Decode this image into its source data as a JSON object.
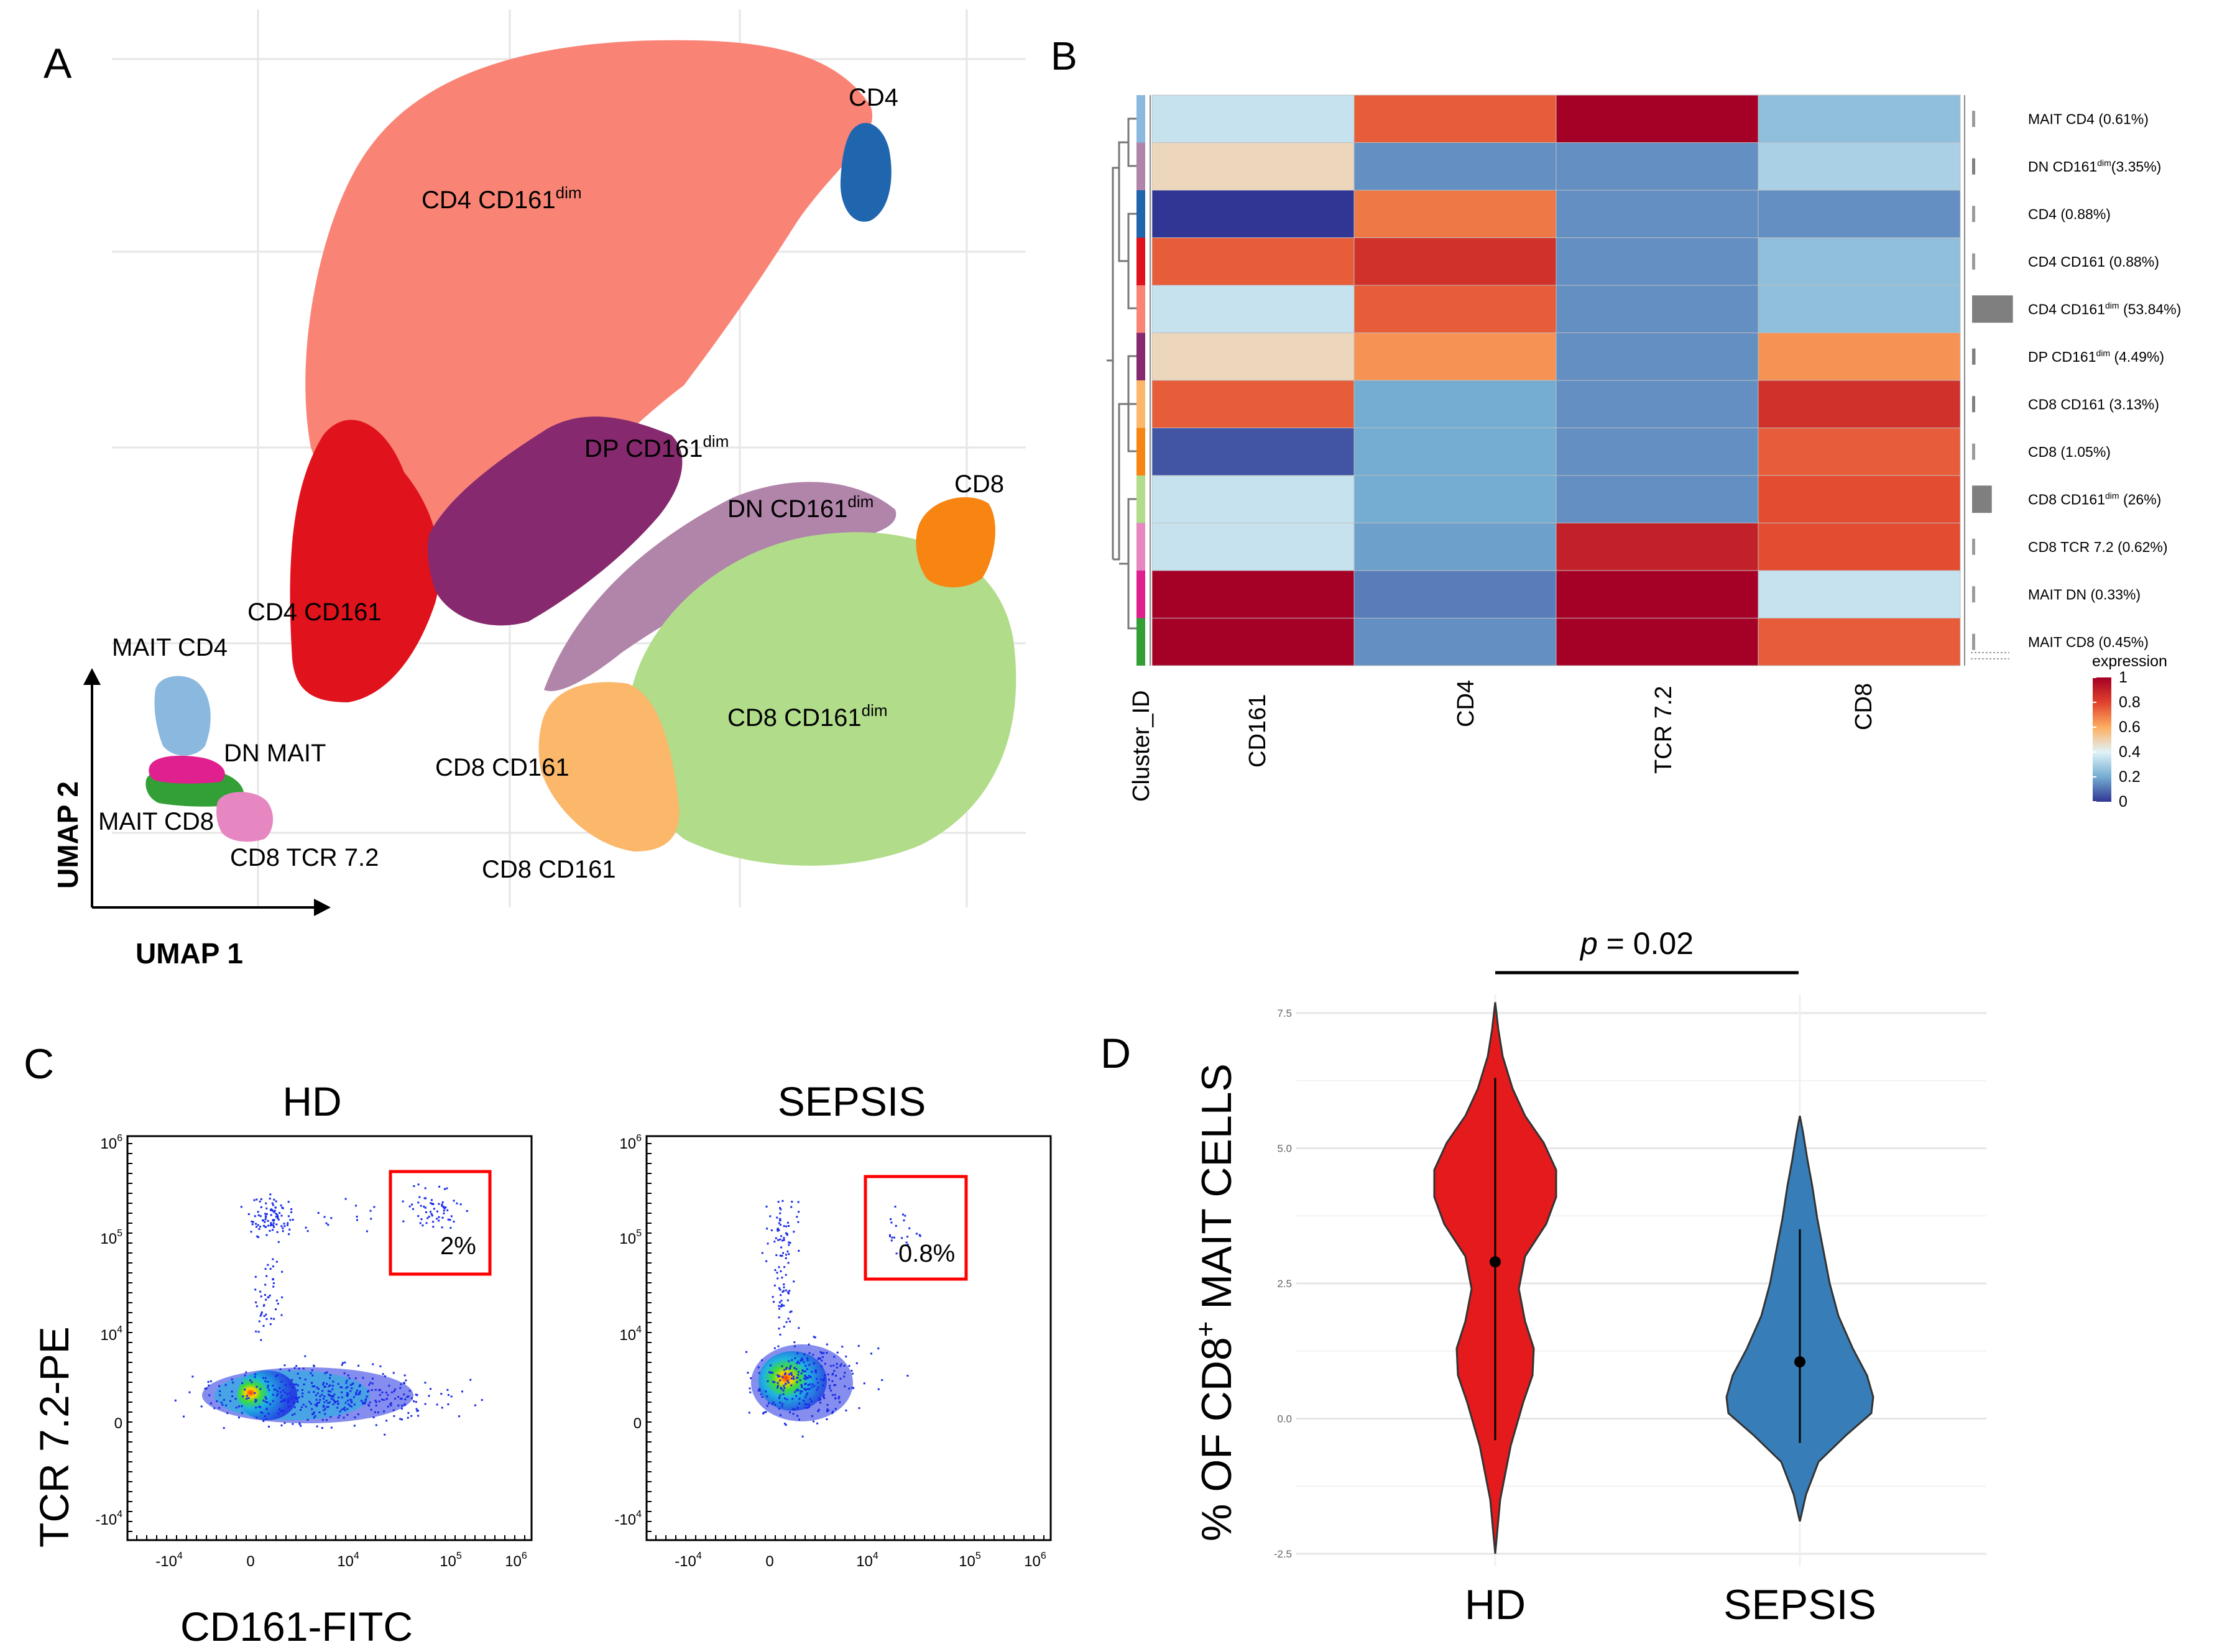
{
  "panels": {
    "A": "A",
    "B": "B",
    "C": "C",
    "D": "D"
  },
  "colors": {
    "cd4_dim": "#F98475",
    "cd4": "#1F66AE",
    "cd4_cd161": "#E0121B",
    "dp_dim": "#86296E",
    "dn_dim": "#B184AA",
    "cd8": "#F88412",
    "cd8_dim": "#B1DC8A",
    "cd8_cd161": "#FBB76A",
    "mait_cd4": "#8AB8DE",
    "mait_cd8": "#32A036",
    "dn_mait": "#E0208E",
    "cd8_tcr": "#E687C1",
    "hd_violin": "#E41A1C",
    "sepsis_violin": "#377EB8",
    "gate": "#FF0000"
  },
  "chart_data": [
    {
      "panel": "A",
      "type": "scatter",
      "title": "",
      "xlabel": "UMAP 1",
      "ylabel": "UMAP 2",
      "clusters": [
        {
          "name": "CD4",
          "label": "CD4",
          "sup": ""
        },
        {
          "name": "CD4 CD161dim",
          "label": "CD4 CD161",
          "sup": "dim"
        },
        {
          "name": "DP CD161dim",
          "label": "DP CD161",
          "sup": "dim"
        },
        {
          "name": "CD8",
          "label": "CD8",
          "sup": ""
        },
        {
          "name": "DN CD161dim",
          "label": "DN CD161",
          "sup": "dim"
        },
        {
          "name": "CD4 CD161",
          "label": "CD4 CD161",
          "sup": ""
        },
        {
          "name": "MAIT CD4",
          "label": "MAIT CD4",
          "sup": ""
        },
        {
          "name": "DN MAIT",
          "label": "DN MAIT",
          "sup": ""
        },
        {
          "name": "CD8 CD161dim",
          "label": "CD8 CD161",
          "sup": "dim"
        },
        {
          "name": "CD8 CD161 (upper)",
          "label": "CD8 CD161",
          "sup": ""
        },
        {
          "name": "MAIT CD8",
          "label": "MAIT CD8",
          "sup": ""
        },
        {
          "name": "CD8 TCR 7.2",
          "label": "CD8 TCR 7.2",
          "sup": ""
        },
        {
          "name": "CD8 CD161 (lower)",
          "label": "CD8 CD161",
          "sup": ""
        }
      ]
    },
    {
      "panel": "B",
      "type": "heatmap",
      "columns": [
        "CD161",
        "CD4",
        "TCR 7.2",
        "CD8"
      ],
      "cluster_axis_label": "Cluster_ID",
      "rows": [
        {
          "label": "MAIT CD4 (0.61%)",
          "values": [
            0.35,
            0.75,
            1.0,
            0.25
          ]
        },
        {
          "label": "DN CD161dim(3.35%)",
          "values": [
            0.48,
            0.15,
            0.15,
            0.3
          ]
        },
        {
          "label": "CD4 (0.88%)",
          "values": [
            0.0,
            0.7,
            0.15,
            0.15
          ]
        },
        {
          "label": "CD4 CD161 (0.88%)",
          "values": [
            0.75,
            0.85,
            0.15,
            0.25
          ]
        },
        {
          "label": "CD4 CD161dim (53.84%)",
          "values": [
            0.35,
            0.75,
            0.15,
            0.25
          ]
        },
        {
          "label": "DP CD161dim (4.49%)",
          "values": [
            0.48,
            0.65,
            0.15,
            0.65
          ]
        },
        {
          "label": "CD8 CD161 (3.13%)",
          "values": [
            0.75,
            0.2,
            0.15,
            0.85
          ]
        },
        {
          "label": "CD8  (1.05%)",
          "values": [
            0.05,
            0.2,
            0.15,
            0.75
          ]
        },
        {
          "label": "CD8 CD161dim  (26%)",
          "values": [
            0.35,
            0.2,
            0.15,
            0.78
          ]
        },
        {
          "label": "CD8 TCR 7.2  (0.62%)",
          "values": [
            0.35,
            0.18,
            0.9,
            0.78
          ]
        },
        {
          "label": "MAIT DN  (0.33%)",
          "values": [
            1.0,
            0.12,
            1.0,
            0.35
          ]
        },
        {
          "label": "MAIT CD8  (0.45%)",
          "values": [
            1.0,
            0.15,
            1.0,
            0.75
          ]
        }
      ],
      "row_label_parts": [
        [
          "MAIT CD4 (0.61%)",
          "",
          ""
        ],
        [
          "DN CD161",
          "dim",
          "(3.35%)"
        ],
        [
          "CD4 (0.88%)",
          "",
          ""
        ],
        [
          "CD4 CD161 (0.88%)",
          "",
          ""
        ],
        [
          "CD4 CD161",
          "dim",
          " (53.84%)"
        ],
        [
          "DP CD161",
          "dim",
          " (4.49%)"
        ],
        [
          "CD8 CD161 (3.13%)",
          "",
          ""
        ],
        [
          "CD8  (1.05%)",
          "",
          ""
        ],
        [
          "CD8 CD161",
          "dim",
          "  (26%)"
        ],
        [
          "CD8 TCR 7.2  (0.62%)",
          "",
          ""
        ],
        [
          "MAIT DN  (0.33%)",
          "",
          ""
        ],
        [
          "MAIT CD8  (0.45%)",
          "",
          ""
        ]
      ],
      "row_sizes_pct": [
        0.61,
        3.35,
        0.88,
        0.88,
        53.84,
        4.49,
        3.13,
        1.05,
        26,
        0.62,
        0.33,
        0.45
      ],
      "row_cluster_colors": [
        "#8AB8DE",
        "#B184AA",
        "#1F66AE",
        "#E0121B",
        "#F98475",
        "#86296E",
        "#FBB76A",
        "#F88412",
        "#B1DC8A",
        "#E687C1",
        "#E0208E",
        "#32A036"
      ],
      "legend_title": "expression",
      "legend_ticks": [
        "1",
        "0.8",
        "0.6",
        "0.4",
        "0.2",
        "0"
      ],
      "range": [
        0,
        1
      ]
    },
    {
      "panel": "C",
      "type": "scatter",
      "xlabel": "CD161-FITC",
      "ylabel": "TCR 7.2-PE",
      "x_ticks": [
        "-10",
        "0",
        "10",
        "10",
        "10"
      ],
      "x_tick_exps": [
        "4",
        "",
        "4",
        "5",
        "6"
      ],
      "y_ticks": [
        "10",
        "10",
        "10",
        "0",
        "-10"
      ],
      "y_tick_exps": [
        "6",
        "5",
        "4",
        "",
        "4"
      ],
      "plots": [
        {
          "title": "HD",
          "gate_label": "2%",
          "gate_pct": 2
        },
        {
          "title": "SEPSIS",
          "gate_label": "0.8%",
          "gate_pct": 0.8
        }
      ]
    },
    {
      "panel": "D",
      "type": "violin",
      "categories": [
        "HD",
        "SEPSIS"
      ],
      "ylabel_prefix": "% OF  CD8",
      "ylabel_sup": "+",
      "ylabel_suffix": " MAIT CELLS",
      "ylim": [
        -2.5,
        7.8
      ],
      "y_ticks": [
        "7.5",
        "5.0",
        "2.5",
        "0.0",
        "-2.5"
      ],
      "series": [
        {
          "name": "HD",
          "median": 2.9,
          "whisker": [
            -0.4,
            6.3
          ],
          "range": [
            -2.5,
            7.7
          ]
        },
        {
          "name": "SEPSIS",
          "median": 1.05,
          "whisker": [
            -0.45,
            3.5
          ],
          "range": [
            -1.9,
            5.6
          ]
        }
      ],
      "significance": {
        "p_symbol": "p",
        "p_value": " = 0.02"
      }
    }
  ]
}
